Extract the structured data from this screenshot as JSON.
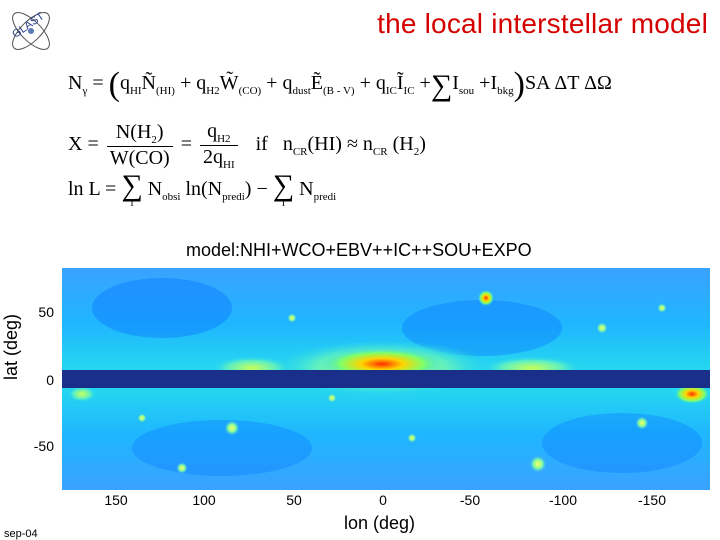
{
  "slide": {
    "title": "the local interstellar model",
    "logo_text": "GLAST",
    "date": "sep-04"
  },
  "equations": {
    "eq1": {
      "lhs": "N",
      "lhs_sub": "γ",
      "eq": "=",
      "t1": "q",
      "t1_sub": "HI",
      "t1b": "Ñ",
      "t1b_sub": "(HI)",
      "t2": "+ q",
      "t2_sub": "H2",
      "t2b": "W̃",
      "t2b_sub": "(CO)",
      "t3": "+ q",
      "t3_sub": "dust",
      "t3b": "Ẽ",
      "t3b_sub": "(B - V)",
      "t4": "+ q",
      "t4_sub": "IC",
      "t4b": "Ĩ",
      "t4b_sub": "IC",
      "t5": "+",
      "t6": "I",
      "t6_sub": "sou",
      "t7": "+I",
      "t7_sub": "bkg",
      "tail": "SA ΔT ΔΩ"
    },
    "eq2": {
      "lhs": "X =",
      "num1": "N(H",
      "num1_sub": "2",
      "num1_end": ")",
      "den1": "W(CO)",
      "eq": "=",
      "num2": "q",
      "num2_sub": "H2",
      "den2": "2q",
      "den2_sub": "HI",
      "if": "if",
      "cond": "n",
      "cond_sub": "CR",
      "cond_mid": "(HI) ≈ n",
      "cond_sub2": "CR",
      "cond_end": "(H",
      "cond_end_sub": "2",
      "cond_close": ")"
    },
    "eq3": {
      "lhs": "ln L =",
      "sum_lim": "i",
      "t1": "N",
      "t1_sub": "obsi",
      "t2": "ln(N",
      "t2_sub": "predi",
      "t2_end": ") −",
      "t3": "N",
      "t3_sub": "predi"
    }
  },
  "plot": {
    "title": "model:NHI+WCO+EBV++IC++SOU+EXPO",
    "xlabel": "lon (deg)",
    "ylabel": "lat (deg)",
    "yticks": [
      "50",
      "0",
      "-50"
    ],
    "xticks": [
      "150",
      "100",
      "50",
      "0",
      "-50",
      "-100",
      "-150"
    ],
    "colormap": [
      "#00007f",
      "#0000ff",
      "#0080ff",
      "#00ffff",
      "#80ff80",
      "#ffff00",
      "#ff8000",
      "#ff0000",
      "#800000"
    ],
    "band_color": "#1a2f8a"
  }
}
